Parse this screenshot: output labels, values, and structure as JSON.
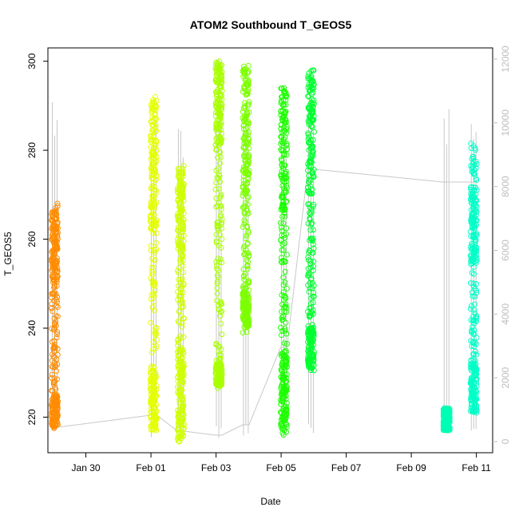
{
  "chart_data": {
    "type": "scatter",
    "title": "ATOM2 Southbound T_GEOS5",
    "xlabel": "Date",
    "ylabel": "T_GEOS5",
    "xlim": [
      "2016-01-28T20:00",
      "2016-02-11T12:00"
    ],
    "ylim": [
      212,
      303
    ],
    "x_ticks": [
      {
        "label": "Jan 30",
        "date": "2016-01-30"
      },
      {
        "label": "Feb 01",
        "date": "2016-02-01"
      },
      {
        "label": "Feb 03",
        "date": "2016-02-03"
      },
      {
        "label": "Feb 05",
        "date": "2016-02-05"
      },
      {
        "label": "Feb 07",
        "date": "2016-02-07"
      },
      {
        "label": "Feb 09",
        "date": "2016-02-09"
      },
      {
        "label": "Feb 11",
        "date": "2016-02-11"
      }
    ],
    "y_ticks": [
      220,
      240,
      260,
      280,
      300
    ],
    "secondary_axis": {
      "side": "right",
      "color": "#bdbdbd",
      "ylim": [
        -350,
        12350
      ],
      "ticks": [
        0,
        2000,
        4000,
        6000,
        8000,
        10000,
        12000
      ]
    },
    "grid": false,
    "legend": "none",
    "series": [
      {
        "color": "#ff8c00",
        "x": "2016-01-29T01:00",
        "y_min": 217.5,
        "y_max": 268,
        "dense": [
          [
            218,
            225
          ],
          [
            250,
            266
          ]
        ]
      },
      {
        "color": "#e4ff00",
        "x": "2016-02-01T02:00",
        "y_min": 217,
        "y_max": 292,
        "dense": [
          [
            217,
            230
          ],
          [
            262,
            292
          ]
        ]
      },
      {
        "color": "#cfff00",
        "x": "2016-02-01T22:00",
        "y_min": 214.5,
        "y_max": 276.5,
        "dense": [
          [
            215,
            235
          ],
          [
            255,
            276
          ]
        ]
      },
      {
        "color": "#a8ff00",
        "x": "2016-02-03T02:00",
        "y_min": 226.5,
        "y_max": 300,
        "dense": [
          [
            227,
            232
          ],
          [
            280,
            300
          ]
        ]
      },
      {
        "color": "#7cff00",
        "x": "2016-02-03T22:00",
        "y_min": 239,
        "y_max": 299,
        "dense": [
          [
            240,
            248
          ],
          [
            270,
            299
          ]
        ]
      },
      {
        "color": "#1cff00",
        "x": "2016-02-05T02:00",
        "y_min": 216,
        "y_max": 294,
        "dense": [
          [
            216,
            235
          ],
          [
            265,
            294
          ]
        ]
      },
      {
        "color": "#00ff30",
        "x": "2016-02-05T22:00",
        "y_min": 230.5,
        "y_max": 298,
        "dense": [
          [
            231,
            240
          ],
          [
            270,
            298
          ]
        ]
      },
      {
        "color": "#00ffb4",
        "x": "2016-02-10T02:00",
        "y_min": 217,
        "y_max": 222,
        "dense": [
          [
            217,
            222
          ]
        ]
      },
      {
        "color": "#00ffc8",
        "x": "2016-02-10T22:00",
        "y_min": 221,
        "y_max": 281.5,
        "dense": [
          [
            221,
            232
          ],
          [
            255,
            272
          ]
        ]
      }
    ]
  }
}
